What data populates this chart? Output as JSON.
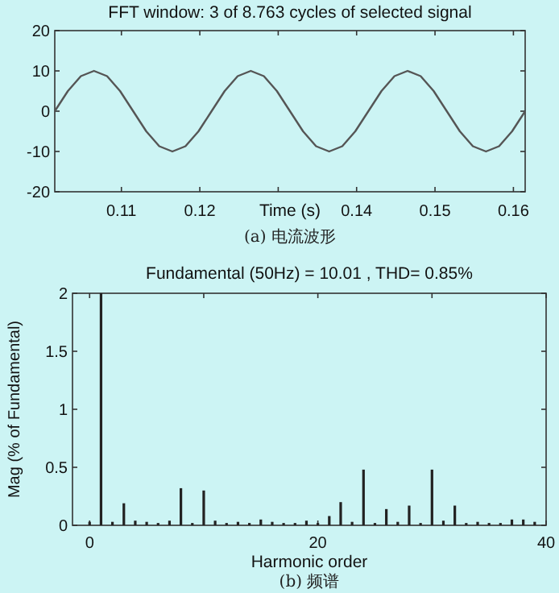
{
  "chart_data": [
    {
      "type": "line",
      "title": "FFT window: 3 of 8.763 cycles of selected signal",
      "xlabel": "Time (s)",
      "annotations": [
        "(a) 电流波形"
      ],
      "x": [
        0.1015,
        0.10317,
        0.10483,
        0.1065,
        0.10817,
        0.10983,
        0.1115,
        0.11317,
        0.11483,
        0.1165,
        0.11817,
        0.11983,
        0.1215,
        0.12317,
        0.12483,
        0.1265,
        0.12817,
        0.12983,
        0.1315,
        0.13317,
        0.13483,
        0.1365,
        0.13817,
        0.13983,
        0.1415,
        0.14317,
        0.14483,
        0.1465,
        0.14817,
        0.14983,
        0.1515,
        0.15317,
        0.15483,
        0.1565,
        0.15817,
        0.15983,
        0.1615
      ],
      "values": [
        0,
        5,
        8.7,
        10,
        8.7,
        5,
        0,
        -5,
        -8.7,
        -10,
        -8.7,
        -5,
        0,
        5,
        8.7,
        10,
        8.7,
        5,
        0,
        -5,
        -8.7,
        -10,
        -8.7,
        -5,
        0,
        5,
        8.7,
        10,
        8.7,
        5,
        0,
        -5,
        -8.7,
        -10,
        -8.7,
        -5,
        0
      ],
      "color": "#555555",
      "xlim": [
        0.1015,
        0.1615
      ],
      "ylim": [
        -20,
        20
      ],
      "xticks": [
        0.11,
        0.12,
        {
          "value": 0.13,
          "label": null
        },
        0.14,
        0.15,
        0.16
      ],
      "yticks": [
        -20,
        -10,
        0,
        10,
        20
      ]
    },
    {
      "type": "bar",
      "title": "Fundamental (50Hz) = 10.01 , THD= 0.85%",
      "xlabel": "Harmonic order",
      "ylabel": "Mag (% of Fundamental)",
      "annotations": [
        "(b) 频谱"
      ],
      "x": [
        0,
        1,
        2,
        3,
        4,
        5,
        6,
        7,
        8,
        9,
        10,
        11,
        12,
        13,
        14,
        15,
        16,
        17,
        18,
        19,
        20,
        21,
        22,
        23,
        24,
        25,
        26,
        27,
        28,
        29,
        30,
        31,
        32,
        33,
        34,
        35,
        36,
        37,
        38,
        39
      ],
      "values": [
        0.03,
        2,
        0.03,
        0.19,
        0.04,
        0.03,
        0.02,
        0.04,
        0.32,
        0.02,
        0.3,
        0.04,
        0.02,
        0.03,
        0.02,
        0.05,
        0.03,
        0.02,
        0.02,
        0.04,
        0.02,
        0.08,
        0.2,
        0.03,
        0.48,
        0.02,
        0.14,
        0.03,
        0.17,
        0.02,
        0.48,
        0.04,
        0.17,
        0.02,
        0.03,
        0.02,
        0.02,
        0.05,
        0.05,
        0.03
      ],
      "color": "#222222",
      "xlim": [
        -1.5,
        40
      ],
      "ylim": [
        0,
        2
      ],
      "xticks": [
        0,
        {
          "value": 10,
          "label": null
        },
        20,
        {
          "value": 30,
          "label": null
        },
        40
      ],
      "yticks": [
        0,
        0.5,
        1,
        1.5,
        2
      ]
    }
  ]
}
